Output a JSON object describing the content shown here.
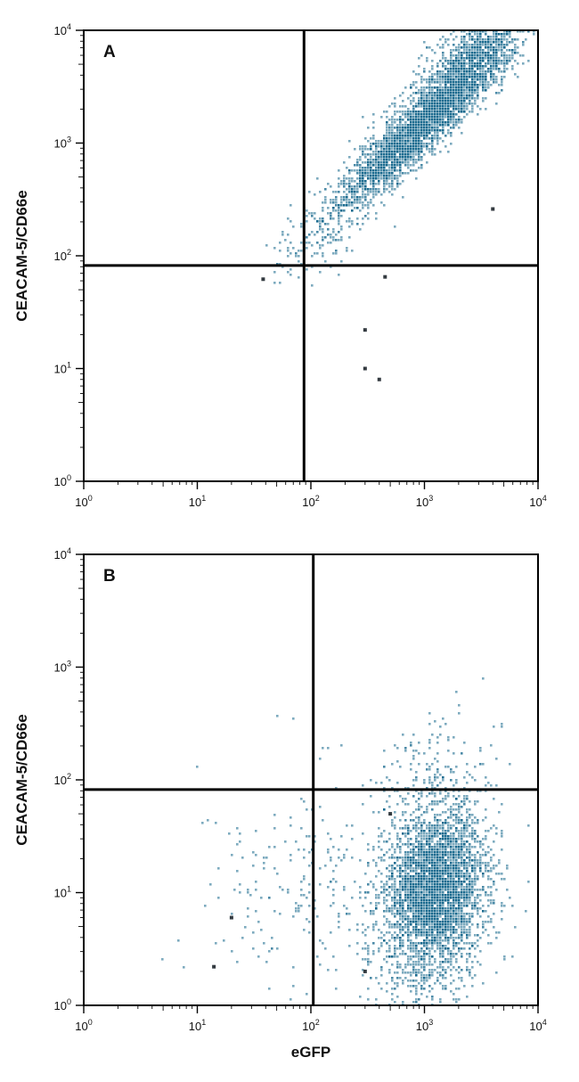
{
  "figure": {
    "colors": {
      "dots": "#1b6b8f",
      "frame": "#000000",
      "gate": "#000000"
    }
  },
  "chart_data": [
    {
      "type": "scatter",
      "panel_label": "A",
      "xlabel": "",
      "ylabel": "CEACAM-5/CD66e",
      "x_scale": "log",
      "y_scale": "log",
      "xlim": [
        1,
        10000
      ],
      "ylim": [
        1,
        10000
      ],
      "x_ticks": [
        {
          "base": "10",
          "exp": "0"
        },
        {
          "base": "10",
          "exp": "1"
        },
        {
          "base": "10",
          "exp": "2"
        },
        {
          "base": "10",
          "exp": "3"
        },
        {
          "base": "10",
          "exp": "4"
        }
      ],
      "y_ticks": [
        {
          "base": "10",
          "exp": "0"
        },
        {
          "base": "10",
          "exp": "1"
        },
        {
          "base": "10",
          "exp": "2"
        },
        {
          "base": "10",
          "exp": "3"
        },
        {
          "base": "10",
          "exp": "4"
        }
      ],
      "quadrant_gate": {
        "x": 87,
        "y": 82
      },
      "populations": [
        {
          "center": [
            1000,
            1500
          ],
          "spread_decades": [
            0.4,
            0.4
          ],
          "correlation": 0.93,
          "count": 3200
        },
        {
          "center": [
            2500,
            6000
          ],
          "spread_decades": [
            0.25,
            0.22
          ],
          "correlation": 0.75,
          "count": 700
        },
        {
          "center": [
            120,
            150
          ],
          "spread_decades": [
            0.2,
            0.22
          ],
          "correlation": 0.4,
          "count": 120
        }
      ],
      "scatter_points": [
        [
          300,
          10
        ],
        [
          4000,
          260
        ],
        [
          38,
          62
        ],
        [
          450,
          65
        ],
        [
          300,
          22
        ],
        [
          400,
          8
        ]
      ]
    },
    {
      "type": "scatter",
      "panel_label": "B",
      "xlabel": "eGFP",
      "ylabel": "CEACAM-5/CD66e",
      "x_scale": "log",
      "y_scale": "log",
      "xlim": [
        1,
        10000
      ],
      "ylim": [
        1,
        10000
      ],
      "x_ticks": [
        {
          "base": "10",
          "exp": "0"
        },
        {
          "base": "10",
          "exp": "1"
        },
        {
          "base": "10",
          "exp": "2"
        },
        {
          "base": "10",
          "exp": "3"
        },
        {
          "base": "10",
          "exp": "4"
        }
      ],
      "y_ticks": [
        {
          "base": "10",
          "exp": "0"
        },
        {
          "base": "10",
          "exp": "1"
        },
        {
          "base": "10",
          "exp": "2"
        },
        {
          "base": "10",
          "exp": "3"
        },
        {
          "base": "10",
          "exp": "4"
        }
      ],
      "quadrant_gate": {
        "x": 105,
        "y": 82
      },
      "populations": [
        {
          "center": [
            1300,
            12
          ],
          "spread_decades": [
            0.22,
            0.35
          ],
          "correlation": 0.1,
          "count": 3200
        },
        {
          "center": [
            1000,
            3
          ],
          "spread_decades": [
            0.25,
            0.3
          ],
          "correlation": 0.0,
          "count": 500
        },
        {
          "center": [
            1300,
            120
          ],
          "spread_decades": [
            0.25,
            0.3
          ],
          "correlation": 0.1,
          "count": 160
        },
        {
          "center": [
            60,
            10
          ],
          "spread_decades": [
            0.4,
            0.5
          ],
          "correlation": 0.0,
          "count": 140
        },
        {
          "center": [
            250,
            15
          ],
          "spread_decades": [
            0.3,
            0.45
          ],
          "correlation": 0.0,
          "count": 120
        }
      ],
      "scatter_points": [
        [
          14,
          2.2
        ],
        [
          20,
          6
        ],
        [
          300,
          2
        ],
        [
          500,
          50
        ]
      ]
    }
  ]
}
